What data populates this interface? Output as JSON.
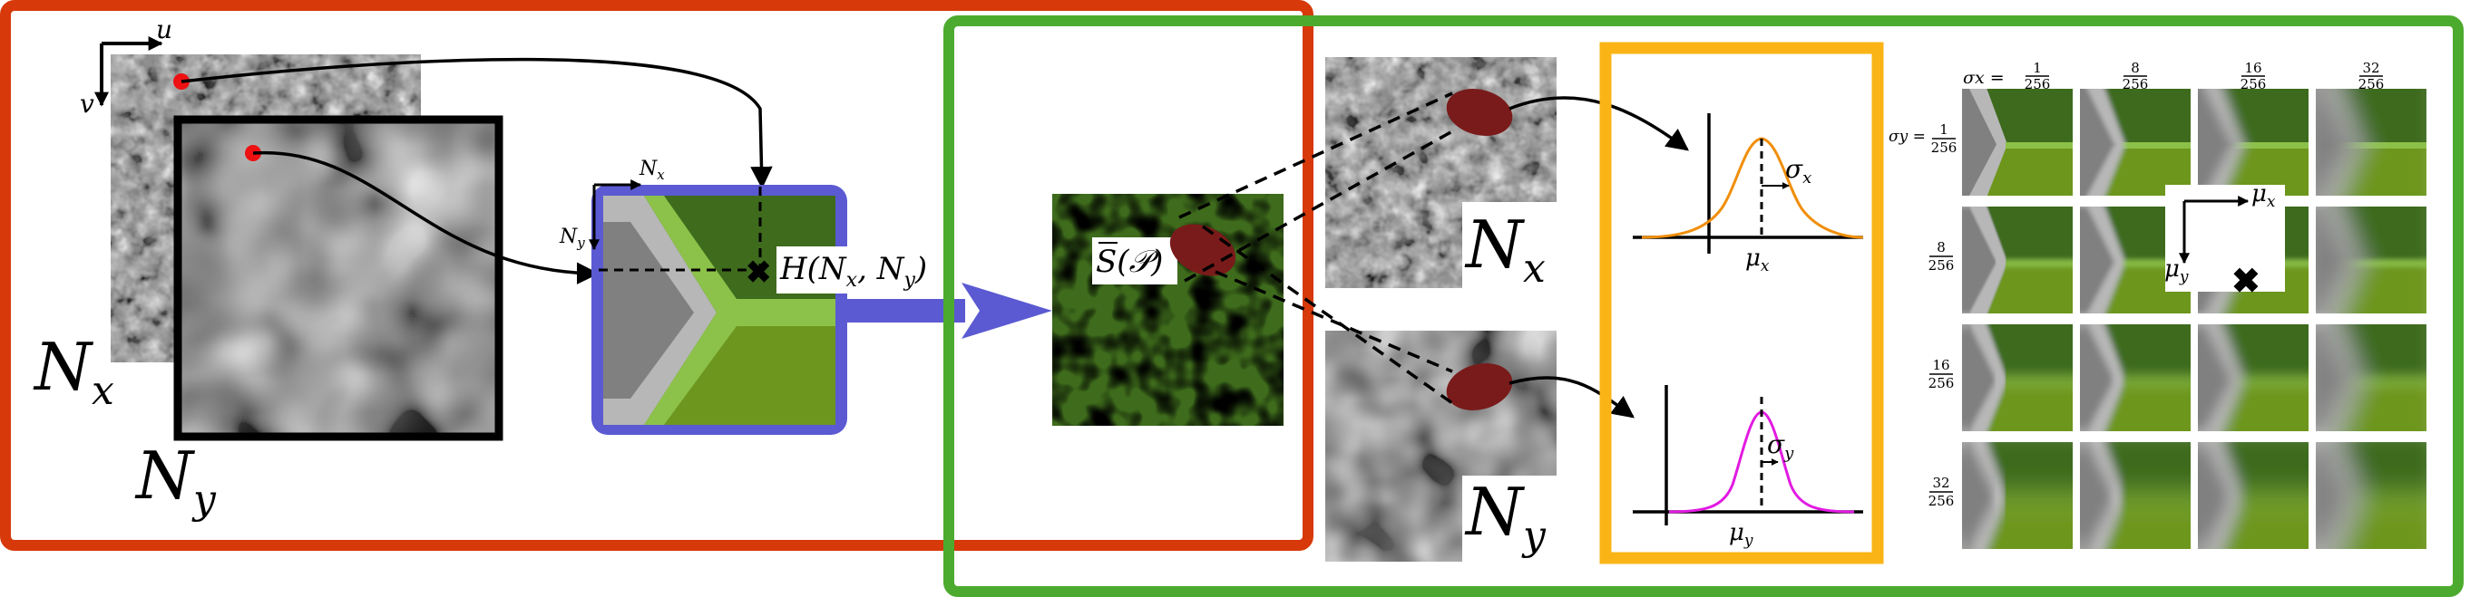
{
  "frames": {
    "red": "#d7390a",
    "green": "#4cab2e",
    "yellow": "#fbb416",
    "blue": "#5b5ad2"
  },
  "colors": {
    "dark_green": "#3e6b1c",
    "light_green": "#8cc14a",
    "olive": "#6d961f",
    "grey": "#808080",
    "light_grey": "#b7b7b7",
    "ellipse": "#7a1b1b",
    "point": "#ee1111",
    "orange_curve": "#f08e0a",
    "magenta_curve": "#e21ae2"
  },
  "left": {
    "axis_u": "u",
    "axis_v": "v",
    "label_nx": "Nx",
    "label_ny": "Ny",
    "map_axis_nx": "Nx",
    "map_axis_ny": "Ny",
    "h_label": "H(Nx, Ny)"
  },
  "middle": {
    "s_label": "S(𝒫)",
    "label_nx": "Nx",
    "label_ny": "Ny"
  },
  "gaussians": {
    "top": {
      "mu": "μx",
      "sigma": "σx"
    },
    "bottom": {
      "mu": "μy",
      "sigma": "σy"
    }
  },
  "grid": {
    "sigma_x_prefix": "σx =",
    "col_headers": [
      "1/256",
      "8/256",
      "16/256",
      "32/256"
    ],
    "sigma_y_prefix": "σy =",
    "row_headers": [
      "1/256",
      "8/256",
      "16/256",
      "32/256"
    ],
    "axis_mu_x": "μx",
    "axis_mu_y": "μy",
    "marker": "✖"
  }
}
